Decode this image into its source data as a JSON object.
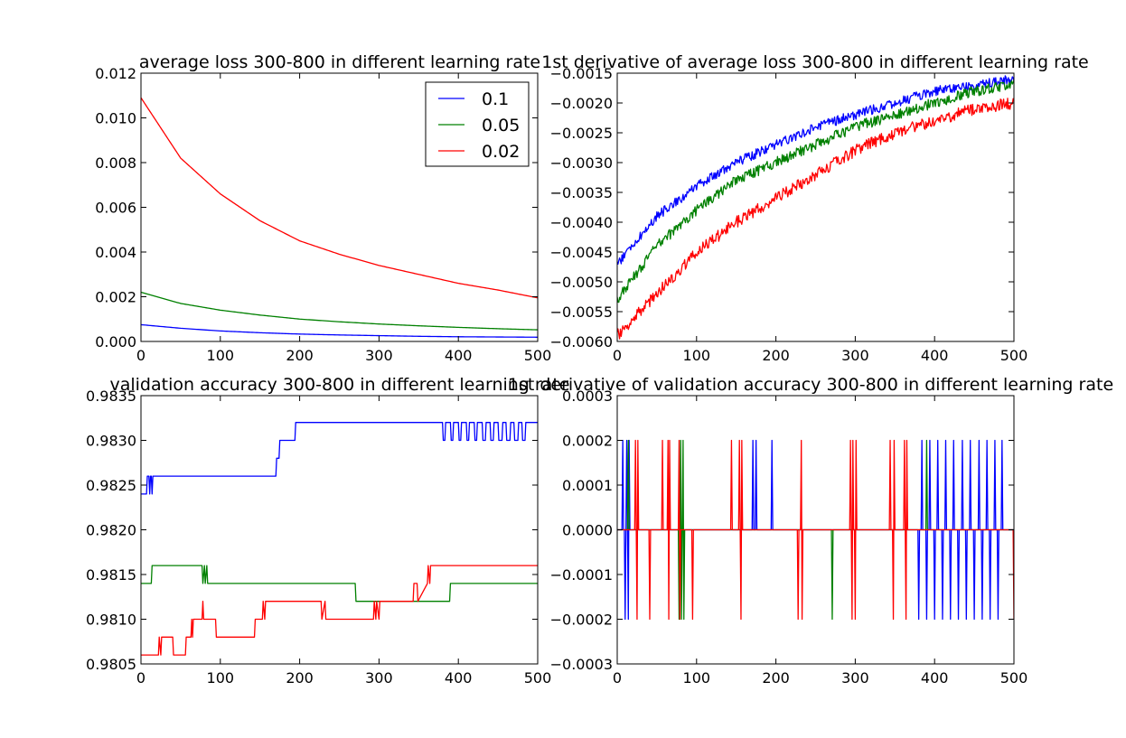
{
  "chart_data": [
    {
      "type": "line",
      "title": "average loss 300-800 in different learning rate",
      "xlabel": "",
      "ylabel": "",
      "xlim": [
        0,
        500
      ],
      "ylim": [
        0.0,
        0.012
      ],
      "xticks": [
        0,
        100,
        200,
        300,
        400,
        500
      ],
      "yticks": [
        0.0,
        0.002,
        0.004,
        0.006,
        0.008,
        0.01,
        0.012
      ],
      "ytick_labels": [
        "0.000",
        "0.002",
        "0.004",
        "0.006",
        "0.008",
        "0.010",
        "0.012"
      ],
      "legend": {
        "position": "upper right",
        "entries": [
          "0.1",
          "0.05",
          "0.02"
        ]
      },
      "series": [
        {
          "name": "0.1",
          "color": "#0000ff",
          "x": [
            0,
            50,
            100,
            150,
            200,
            250,
            300,
            350,
            400,
            450,
            500
          ],
          "y": [
            0.00075,
            0.00059,
            0.00047,
            0.00039,
            0.00033,
            0.00029,
            0.00026,
            0.00023,
            0.00021,
            0.0002,
            0.00019
          ]
        },
        {
          "name": "0.05",
          "color": "#008000",
          "x": [
            0,
            50,
            100,
            150,
            200,
            250,
            300,
            350,
            400,
            450,
            500
          ],
          "y": [
            0.0022,
            0.0017,
            0.0014,
            0.00118,
            0.001,
            0.00088,
            0.00078,
            0.0007,
            0.00063,
            0.00057,
            0.00052
          ]
        },
        {
          "name": "0.02",
          "color": "#ff0000",
          "x": [
            0,
            50,
            100,
            150,
            200,
            250,
            300,
            350,
            400,
            450,
            500
          ],
          "y": [
            0.0109,
            0.0082,
            0.0066,
            0.0054,
            0.0045,
            0.0039,
            0.0034,
            0.003,
            0.0026,
            0.0023,
            0.00195
          ]
        }
      ]
    },
    {
      "type": "line",
      "title": "1st derivative of average loss 300-800 in different learning rate",
      "xlabel": "",
      "ylabel": "",
      "xlim": [
        0,
        500
      ],
      "ylim": [
        -0.006,
        -0.0015
      ],
      "xticks": [
        0,
        100,
        200,
        300,
        400,
        500
      ],
      "yticks": [
        -0.006,
        -0.0055,
        -0.005,
        -0.0045,
        -0.004,
        -0.0035,
        -0.003,
        -0.0025,
        -0.002,
        -0.0015
      ],
      "ytick_labels": [
        "−0.0060",
        "−0.0055",
        "−0.0050",
        "−0.0045",
        "−0.0040",
        "−0.0035",
        "−0.0030",
        "−0.0025",
        "−0.0020",
        "−0.0015"
      ],
      "series": [
        {
          "name": "0.1",
          "color": "#0000ff",
          "noise": 8e-05,
          "x": [
            0,
            50,
            100,
            150,
            200,
            250,
            300,
            350,
            400,
            450,
            500
          ],
          "y": [
            -0.0047,
            -0.0039,
            -0.0034,
            -0.003,
            -0.0027,
            -0.0024,
            -0.0022,
            -0.002,
            -0.0018,
            -0.0017,
            -0.0016
          ]
        },
        {
          "name": "0.05",
          "color": "#008000",
          "noise": 9e-05,
          "x": [
            0,
            50,
            100,
            150,
            200,
            250,
            300,
            350,
            400,
            450,
            500
          ],
          "y": [
            -0.0053,
            -0.0044,
            -0.0038,
            -0.0033,
            -0.003,
            -0.0027,
            -0.0024,
            -0.0022,
            -0.002,
            -0.0018,
            -0.0017
          ]
        },
        {
          "name": "0.02",
          "color": "#ff0000",
          "noise": 0.0001,
          "x": [
            0,
            50,
            100,
            150,
            200,
            250,
            300,
            350,
            400,
            450,
            500
          ],
          "y": [
            -0.0059,
            -0.0052,
            -0.0045,
            -0.004,
            -0.0036,
            -0.0032,
            -0.0028,
            -0.0025,
            -0.0023,
            -0.0021,
            -0.002
          ]
        }
      ]
    },
    {
      "type": "line",
      "title": "validation accuracy 300-800 in different learning rate",
      "xlabel": "",
      "ylabel": "",
      "xlim": [
        0,
        500
      ],
      "ylim": [
        0.9805,
        0.9835
      ],
      "xticks": [
        0,
        100,
        200,
        300,
        400,
        500
      ],
      "yticks": [
        0.9805,
        0.981,
        0.9815,
        0.982,
        0.9825,
        0.983,
        0.9835
      ],
      "ytick_labels": [
        "0.9805",
        "0.9810",
        "0.9815",
        "0.9820",
        "0.9825",
        "0.9830",
        "0.9835"
      ],
      "series": [
        {
          "name": "0.1",
          "color": "#0000ff",
          "x": [
            0,
            7,
            8,
            10,
            11,
            12,
            13,
            14,
            15,
            16,
            170,
            171,
            174,
            175,
            178,
            194,
            195,
            380,
            381,
            383,
            384,
            390,
            391,
            393,
            394,
            400,
            401,
            403,
            404,
            410,
            411,
            413,
            414,
            420,
            421,
            423,
            424,
            430,
            431,
            434,
            435,
            440,
            441,
            444,
            445,
            450,
            451,
            455,
            456,
            460,
            461,
            465,
            466,
            470,
            471,
            475,
            476,
            480,
            481,
            484,
            485,
            490,
            491,
            500
          ],
          "y": [
            0.9824,
            0.9824,
            0.9826,
            0.9826,
            0.9824,
            0.9826,
            0.9826,
            0.9824,
            0.9826,
            0.9826,
            0.9826,
            0.9828,
            0.9828,
            0.983,
            0.983,
            0.983,
            0.9832,
            0.9832,
            0.983,
            0.983,
            0.9832,
            0.9832,
            0.983,
            0.983,
            0.9832,
            0.9832,
            0.983,
            0.983,
            0.9832,
            0.9832,
            0.983,
            0.983,
            0.9832,
            0.9832,
            0.983,
            0.983,
            0.9832,
            0.9832,
            0.983,
            0.983,
            0.9832,
            0.9832,
            0.983,
            0.983,
            0.9832,
            0.9832,
            0.983,
            0.983,
            0.9832,
            0.9832,
            0.983,
            0.983,
            0.9832,
            0.9832,
            0.983,
            0.983,
            0.9832,
            0.9832,
            0.983,
            0.983,
            0.9832,
            0.9832,
            0.9832,
            0.9832
          ]
        },
        {
          "name": "0.05",
          "color": "#008000",
          "x": [
            0,
            13,
            14,
            77,
            78,
            80,
            81,
            83,
            84,
            270,
            271,
            389,
            390,
            500
          ],
          "y": [
            0.9814,
            0.9814,
            0.9816,
            0.9816,
            0.9814,
            0.9816,
            0.9814,
            0.9816,
            0.9814,
            0.9814,
            0.9812,
            0.9812,
            0.9814,
            0.9814
          ]
        },
        {
          "name": "0.02",
          "color": "#ff0000",
          "x": [
            0,
            22,
            23,
            25,
            26,
            40,
            41,
            56,
            57,
            63,
            64,
            65,
            66,
            77,
            78,
            79,
            80,
            94,
            95,
            143,
            144,
            153,
            154,
            156,
            157,
            227,
            228,
            232,
            233,
            293,
            294,
            296,
            297,
            300,
            301,
            343,
            344,
            348,
            349,
            361,
            362,
            364,
            365,
            500
          ],
          "y": [
            0.9806,
            0.9806,
            0.9808,
            0.9806,
            0.9808,
            0.9808,
            0.9806,
            0.9806,
            0.9808,
            0.9808,
            0.981,
            0.9808,
            0.981,
            0.981,
            0.9812,
            0.981,
            0.981,
            0.981,
            0.9808,
            0.9808,
            0.981,
            0.981,
            0.9812,
            0.981,
            0.9812,
            0.9812,
            0.981,
            0.9812,
            0.981,
            0.981,
            0.9812,
            0.981,
            0.9812,
            0.981,
            0.9812,
            0.9812,
            0.9814,
            0.9814,
            0.9812,
            0.9814,
            0.9816,
            0.9814,
            0.9816,
            0.9816
          ]
        }
      ]
    },
    {
      "type": "line",
      "title": "1st derivative of validation accuracy 300-800 in different learning rate",
      "xlabel": "",
      "ylabel": "",
      "xlim": [
        0,
        500
      ],
      "ylim": [
        -0.0003,
        0.0003
      ],
      "xticks": [
        0,
        100,
        200,
        300,
        400,
        500
      ],
      "yticks": [
        -0.0003,
        -0.0002,
        -0.0001,
        0.0,
        0.0001,
        0.0002,
        0.0003
      ],
      "ytick_labels": [
        "−0.0003",
        "−0.0002",
        "−0.0001",
        "0.0000",
        "0.0001",
        "0.0002",
        "0.0003"
      ],
      "series": [
        {
          "name": "0.1",
          "color": "#0000ff",
          "spikes": [
            [
              7,
              0.0002
            ],
            [
              10,
              -0.0002
            ],
            [
              12,
              0.0002
            ],
            [
              14,
              -0.0002
            ],
            [
              15,
              0.0002
            ],
            [
              171,
              0.0002
            ],
            [
              175,
              0.0002
            ],
            [
              195,
              0.0002
            ],
            [
              380,
              -0.0002
            ],
            [
              384,
              0.0002
            ],
            [
              390,
              -0.0002
            ],
            [
              394,
              0.0002
            ],
            [
              400,
              -0.0002
            ],
            [
              404,
              0.0002
            ],
            [
              410,
              -0.0002
            ],
            [
              414,
              0.0002
            ],
            [
              420,
              -0.0002
            ],
            [
              424,
              0.0002
            ],
            [
              430,
              -0.0002
            ],
            [
              435,
              0.0002
            ],
            [
              440,
              -0.0002
            ],
            [
              445,
              0.0002
            ],
            [
              450,
              -0.0002
            ],
            [
              456,
              0.0002
            ],
            [
              460,
              -0.0002
            ],
            [
              466,
              0.0002
            ],
            [
              470,
              -0.0002
            ],
            [
              476,
              0.0002
            ],
            [
              480,
              -0.0002
            ],
            [
              485,
              0.0002
            ]
          ]
        },
        {
          "name": "0.05",
          "color": "#008000",
          "spikes": [
            [
              14,
              0.0002
            ],
            [
              78,
              -0.0002
            ],
            [
              80,
              0.0002
            ],
            [
              81,
              -0.0002
            ],
            [
              83,
              0.0002
            ],
            [
              84,
              -0.0002
            ],
            [
              271,
              -0.0002
            ],
            [
              390,
              0.0002
            ]
          ]
        },
        {
          "name": "0.02",
          "color": "#ff0000",
          "spikes": [
            [
              23,
              0.0002
            ],
            [
              25,
              -0.0002
            ],
            [
              26,
              0.0002
            ],
            [
              41,
              -0.0002
            ],
            [
              57,
              0.0002
            ],
            [
              64,
              0.0002
            ],
            [
              65,
              -0.0002
            ],
            [
              66,
              0.0002
            ],
            [
              78,
              0.0002
            ],
            [
              79,
              -0.0002
            ],
            [
              95,
              -0.0002
            ],
            [
              144,
              0.0002
            ],
            [
              154,
              0.0002
            ],
            [
              156,
              -0.0002
            ],
            [
              157,
              0.0002
            ],
            [
              228,
              -0.0002
            ],
            [
              232,
              0.0002
            ],
            [
              233,
              -0.0002
            ],
            [
              294,
              0.0002
            ],
            [
              296,
              -0.0002
            ],
            [
              297,
              0.0002
            ],
            [
              300,
              -0.0002
            ],
            [
              301,
              0.0002
            ],
            [
              344,
              0.0002
            ],
            [
              348,
              -0.0002
            ],
            [
              349,
              0.0002
            ],
            [
              362,
              0.0002
            ],
            [
              364,
              -0.0002
            ],
            [
              365,
              0.0002
            ],
            [
              500,
              -0.0002
            ]
          ]
        }
      ]
    }
  ]
}
